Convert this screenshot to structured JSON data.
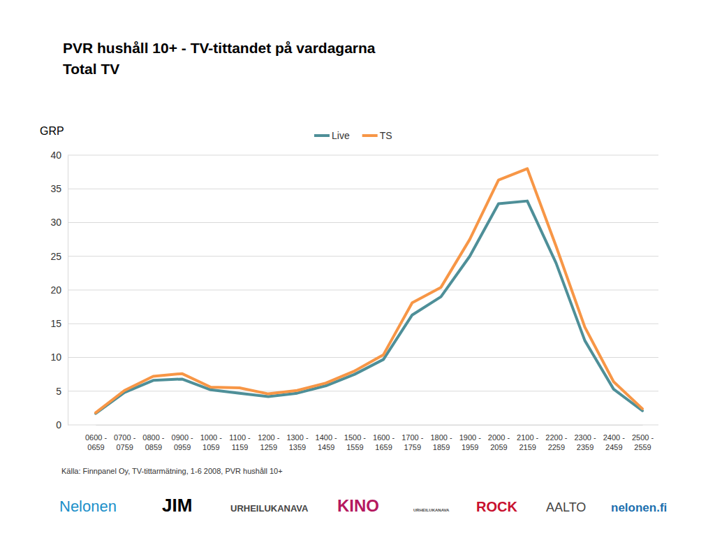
{
  "chart_data": {
    "type": "line",
    "title": "PVR hushåll 10+ - TV-tittandet på vardagarna",
    "subtitle": "Total TV",
    "y_label": "GRP",
    "source": "Källa: Finnpanel Oy, TV-tittarmätning, 1-6 2008, PVR hushåll 10+",
    "categories": [
      "0600 - 0659",
      "0700 - 0759",
      "0800 - 0859",
      "0900 - 0959",
      "1000 - 1059",
      "1100 - 1159",
      "1200 - 1259",
      "1300 - 1359",
      "1400 - 1459",
      "1500 - 1559",
      "1600 - 1659",
      "1700 - 1759",
      "1800 - 1859",
      "1900 - 1959",
      "2000 - 2059",
      "2100 - 2159",
      "2200 - 2259",
      "2300 - 2359",
      "2400 - 2459",
      "2500 - 2559"
    ],
    "series": [
      {
        "name": "Live",
        "color": "#4e8f98",
        "values": [
          1.7,
          4.8,
          6.6,
          6.8,
          5.2,
          4.7,
          4.2,
          4.7,
          5.8,
          7.5,
          9.7,
          16.3,
          19.0,
          25.0,
          32.8,
          33.2,
          24.0,
          12.5,
          5.3,
          2.1
        ]
      },
      {
        "name": "TS",
        "color": "#f79646",
        "values": [
          1.8,
          5.1,
          7.2,
          7.6,
          5.6,
          5.5,
          4.6,
          5.1,
          6.2,
          8.0,
          10.4,
          18.1,
          20.4,
          27.5,
          36.3,
          38.0,
          26.5,
          14.5,
          6.4,
          2.4
        ]
      }
    ],
    "ylim": [
      0,
      40
    ],
    "yticks": [
      0,
      5,
      10,
      15,
      20,
      25,
      30,
      35,
      40
    ],
    "grid": true,
    "legend": "top"
  },
  "footer": {
    "logos": [
      "Nelonen",
      "JIM",
      "URHEILUKANAVA",
      "KINO",
      "URHEILUKANAVA",
      "ROCK",
      "AALTO",
      "nelonen.fi"
    ]
  }
}
